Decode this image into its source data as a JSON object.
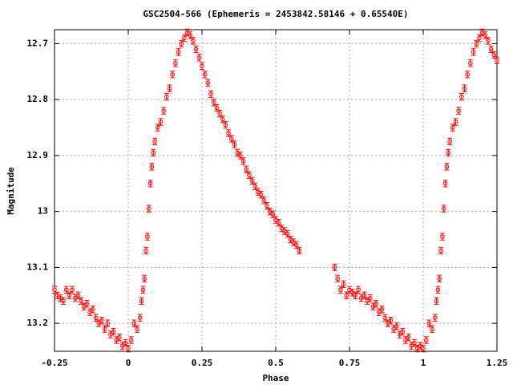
{
  "chart_data": {
    "type": "scatter",
    "title": "GSC2504-566 (Ephemeris = 2453842.58146 + 0.65540E)",
    "xlabel": "Phase",
    "ylabel": "Magnitude",
    "xlim": [
      -0.25,
      1.25
    ],
    "xticks": [
      -0.25,
      0,
      0.25,
      0.5,
      0.75,
      1,
      1.25
    ],
    "ylim": [
      12.675,
      13.25
    ],
    "yticks": [
      12.7,
      12.8,
      12.9,
      13,
      13.1,
      13.2
    ],
    "y_inverted": true,
    "grid": true,
    "color": "#ff0000",
    "error": 0.006,
    "x": [
      -0.25,
      -0.24,
      -0.23,
      -0.22,
      -0.21,
      -0.2,
      -0.19,
      -0.18,
      -0.17,
      -0.16,
      -0.15,
      -0.14,
      -0.13,
      -0.12,
      -0.11,
      -0.1,
      -0.09,
      -0.08,
      -0.07,
      -0.06,
      -0.05,
      -0.04,
      -0.03,
      -0.02,
      -0.01,
      0,
      0.01,
      0.02,
      0.03,
      0.04,
      0.045,
      0.05,
      0.055,
      0.06,
      0.065,
      0.07,
      0.075,
      0.08,
      0.085,
      0.09,
      0.1,
      0.11,
      0.12,
      0.13,
      0.14,
      0.15,
      0.16,
      0.17,
      0.18,
      0.19,
      0.2,
      0.21,
      0.22,
      0.23,
      0.24,
      0.25,
      0.26,
      0.27,
      0.28,
      0.29,
      0.3,
      0.31,
      0.32,
      0.33,
      0.34,
      0.35,
      0.36,
      0.37,
      0.38,
      0.39,
      0.4,
      0.41,
      0.42,
      0.43,
      0.44,
      0.45,
      0.46,
      0.47,
      0.48,
      0.49,
      0.5,
      0.51,
      0.52,
      0.53,
      0.54,
      0.55,
      0.56,
      0.57,
      0.58,
      0.7,
      0.71,
      0.72,
      0.73,
      0.74,
      0.75,
      0.76,
      0.77,
      0.78,
      0.79,
      0.8,
      0.81,
      0.82,
      0.83,
      0.84,
      0.85,
      0.86,
      0.87,
      0.88,
      0.89,
      0.9,
      0.91,
      0.92,
      0.93,
      0.94,
      0.95,
      0.96,
      0.97,
      0.98,
      0.99,
      1.0,
      1.01,
      1.02,
      1.03,
      1.04,
      1.045,
      1.05,
      1.055,
      1.06,
      1.065,
      1.07,
      1.075,
      1.08,
      1.085,
      1.09,
      1.1,
      1.11,
      1.12,
      1.13,
      1.14,
      1.15,
      1.16,
      1.17,
      1.18,
      1.19,
      1.2,
      1.21,
      1.22,
      1.23,
      1.24,
      1.25
    ],
    "values": [
      13.14,
      13.15,
      13.155,
      13.16,
      13.14,
      13.15,
      13.14,
      13.155,
      13.15,
      13.16,
      13.17,
      13.165,
      13.18,
      13.175,
      13.19,
      13.2,
      13.195,
      13.21,
      13.2,
      13.22,
      13.215,
      13.23,
      13.225,
      13.24,
      13.235,
      13.245,
      13.23,
      13.2,
      13.21,
      13.19,
      13.16,
      13.14,
      13.12,
      13.07,
      13.045,
      12.995,
      12.95,
      12.92,
      12.895,
      12.875,
      12.85,
      12.84,
      12.82,
      12.795,
      12.78,
      12.755,
      12.735,
      12.715,
      12.7,
      12.69,
      12.68,
      12.685,
      12.695,
      12.71,
      12.725,
      12.74,
      12.755,
      12.77,
      12.79,
      12.805,
      12.815,
      12.825,
      12.835,
      12.845,
      12.86,
      12.87,
      12.88,
      12.895,
      12.9,
      12.91,
      12.925,
      12.935,
      12.945,
      12.955,
      12.965,
      12.97,
      12.98,
      12.99,
      13.0,
      13.005,
      13.015,
      13.02,
      13.03,
      13.035,
      13.04,
      13.05,
      13.055,
      13.06,
      13.07,
      13.1,
      13.12,
      13.14,
      13.13,
      13.15,
      13.14,
      13.145,
      13.15,
      13.14,
      13.155,
      13.15,
      13.16,
      13.155,
      13.17,
      13.165,
      13.18,
      13.175,
      13.19,
      13.2,
      13.195,
      13.21,
      13.205,
      13.22,
      13.215,
      13.23,
      13.225,
      13.24,
      13.235,
      13.245,
      13.24,
      13.245,
      13.23,
      13.2,
      13.21,
      13.19,
      13.16,
      13.14,
      13.12,
      13.07,
      13.045,
      12.995,
      12.95,
      12.92,
      12.895,
      12.875,
      12.85,
      12.84,
      12.82,
      12.795,
      12.78,
      12.755,
      12.735,
      12.715,
      12.7,
      12.69,
      12.68,
      12.685,
      12.695,
      12.71,
      12.72,
      12.73
    ]
  }
}
